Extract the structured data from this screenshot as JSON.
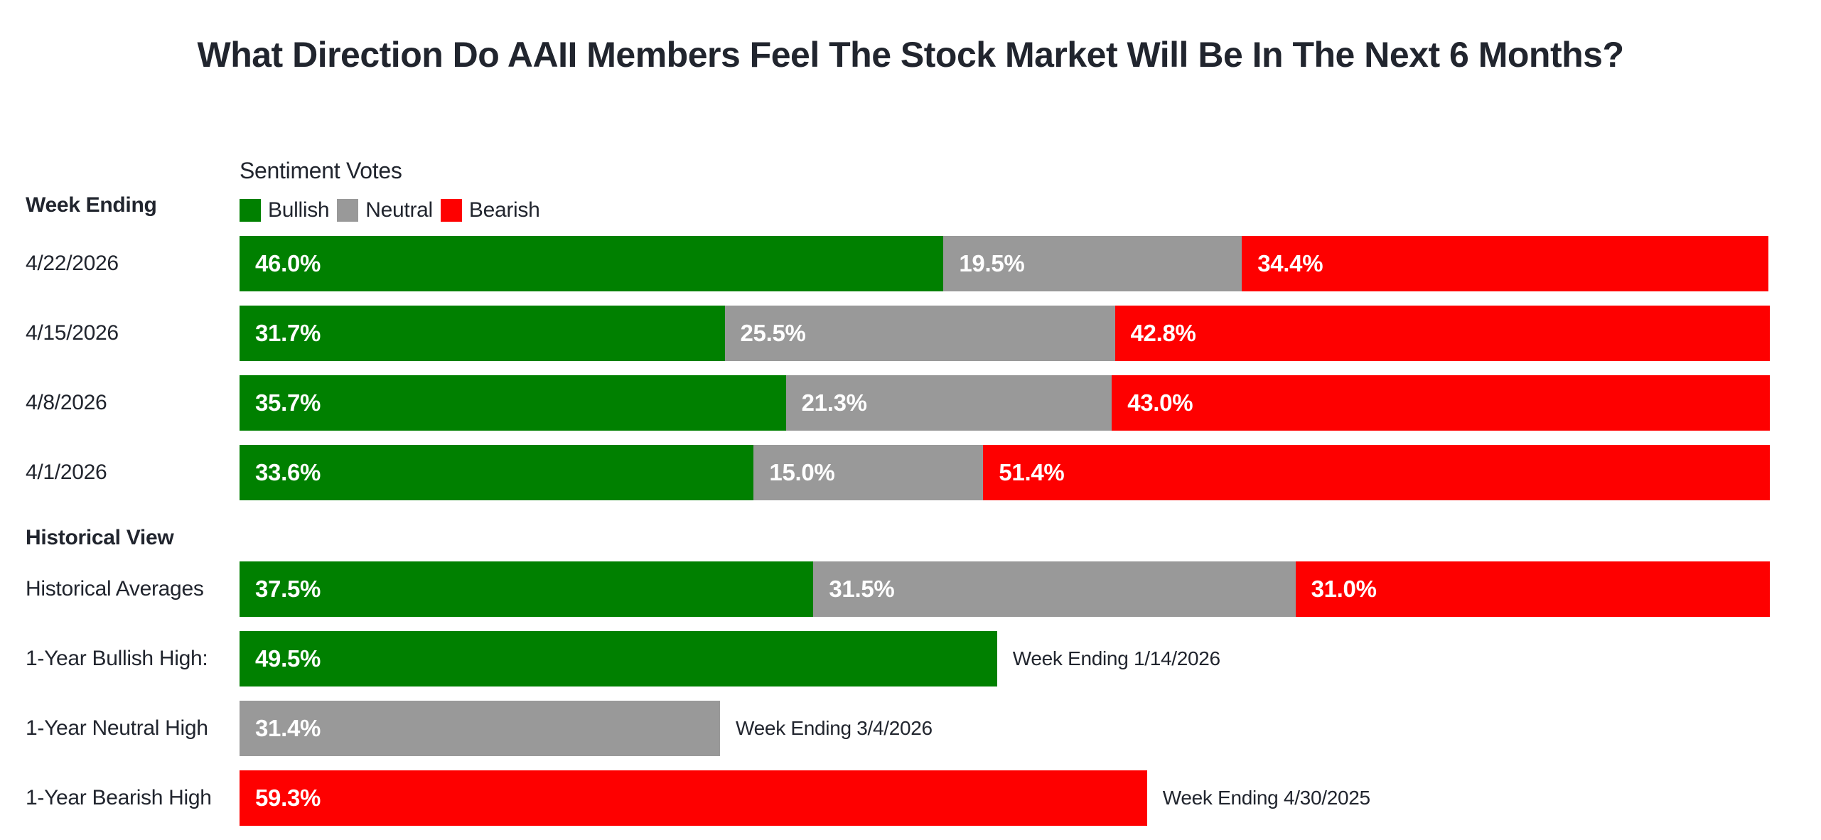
{
  "chart_data": {
    "type": "bar",
    "variant": "horizontal-stacked",
    "title": "What Direction Do AAII Members Feel The Stock Market Will Be In The Next 6 Months?",
    "axis_title": "Sentiment Votes",
    "row_group_header": "Week Ending",
    "section2_header": "Historical View",
    "xlim": [
      0,
      100
    ],
    "value_suffix": "%",
    "grid": false,
    "legend": {
      "position": "top-left",
      "entries": [
        {
          "name": "Bullish",
          "color": "#008000"
        },
        {
          "name": "Neutral",
          "color": "#999999"
        },
        {
          "name": "Bearish",
          "color": "#fe0000"
        }
      ]
    },
    "weekly": {
      "categories": [
        "4/22/2026",
        "4/15/2026",
        "4/8/2026",
        "4/1/2026"
      ],
      "series": [
        {
          "name": "Bullish",
          "values": [
            46.0,
            31.7,
            35.7,
            33.6
          ]
        },
        {
          "name": "Neutral",
          "values": [
            19.5,
            25.5,
            21.3,
            15.0
          ]
        },
        {
          "name": "Bearish",
          "values": [
            34.4,
            42.8,
            43.0,
            51.4
          ]
        }
      ]
    },
    "historical": [
      {
        "label": "Historical Averages",
        "segments": [
          {
            "series": "Bullish",
            "value": 37.5
          },
          {
            "series": "Neutral",
            "value": 31.5
          },
          {
            "series": "Bearish",
            "value": 31.0
          }
        ]
      },
      {
        "label": "1-Year Bullish High:",
        "segments": [
          {
            "series": "Bullish",
            "value": 49.5
          }
        ],
        "annotation": "Week Ending 1/14/2026"
      },
      {
        "label": "1-Year Neutral High",
        "segments": [
          {
            "series": "Neutral",
            "value": 31.4
          }
        ],
        "annotation": "Week Ending 3/4/2026"
      },
      {
        "label": "1-Year Bearish High",
        "segments": [
          {
            "series": "Bearish",
            "value": 59.3
          }
        ],
        "annotation": "Week Ending 4/30/2025"
      }
    ],
    "text_color": "#21252e",
    "value_text_color": "#ffffff"
  }
}
